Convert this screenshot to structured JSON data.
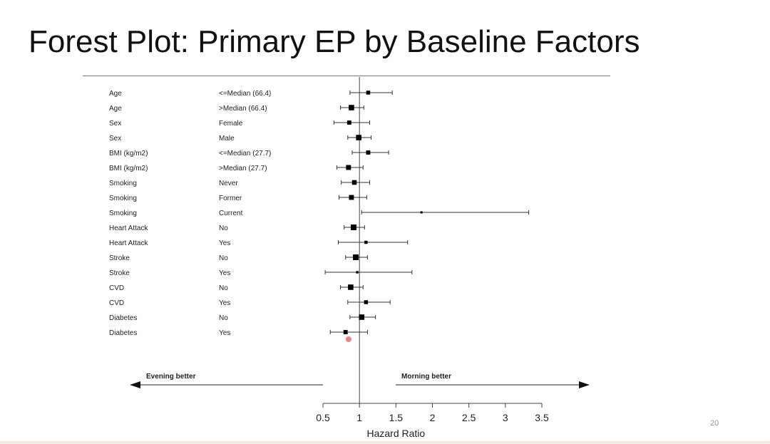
{
  "slide": {
    "title": "Forest Plot: Primary EP by Baseline Factors",
    "page_number": "20"
  },
  "chart_data": {
    "type": "forest",
    "title": "",
    "xlabel": "Hazard Ratio",
    "xlim": [
      0.5,
      3.5
    ],
    "xticks": [
      0.5,
      1,
      1.5,
      2,
      2.5,
      3,
      3.5
    ],
    "xtick_labels": [
      "0.5",
      "1",
      "1.5",
      "2",
      "2.5",
      "3",
      "3.5"
    ],
    "reference_line": 1,
    "rows": [
      {
        "factor": "Age",
        "level": "<=Median (66.4)",
        "hr": 1.12,
        "lo": 0.87,
        "hi": 1.45,
        "weight": 0.5
      },
      {
        "factor": "Age",
        "level": ">Median (66.4)",
        "hr": 0.89,
        "lo": 0.74,
        "hi": 1.06,
        "weight": 0.8
      },
      {
        "factor": "Sex",
        "level": "Female",
        "hr": 0.86,
        "lo": 0.65,
        "hi": 1.14,
        "weight": 0.55
      },
      {
        "factor": "Sex",
        "level": "Male",
        "hr": 0.99,
        "lo": 0.84,
        "hi": 1.16,
        "weight": 0.8
      },
      {
        "factor": "BMI (kg/m2)",
        "level": "<=Median (27.7)",
        "hr": 1.12,
        "lo": 0.9,
        "hi": 1.4,
        "weight": 0.55
      },
      {
        "factor": "BMI (kg/m2)",
        "level": ">Median (27.7)",
        "hr": 0.85,
        "lo": 0.69,
        "hi": 1.05,
        "weight": 0.7
      },
      {
        "factor": "Smoking",
        "level": "Never",
        "hr": 0.93,
        "lo": 0.75,
        "hi": 1.14,
        "weight": 0.65
      },
      {
        "factor": "Smoking",
        "level": "Former",
        "hr": 0.89,
        "lo": 0.72,
        "hi": 1.1,
        "weight": 0.7
      },
      {
        "factor": "Smoking",
        "level": "Current",
        "hr": 1.85,
        "lo": 1.03,
        "hi": 3.32,
        "weight": 0.15
      },
      {
        "factor": "Heart Attack",
        "level": "No",
        "hr": 0.92,
        "lo": 0.79,
        "hi": 1.07,
        "weight": 0.85
      },
      {
        "factor": "Heart Attack",
        "level": "Yes",
        "hr": 1.09,
        "lo": 0.71,
        "hi": 1.66,
        "weight": 0.35
      },
      {
        "factor": "Stroke",
        "level": "No",
        "hr": 0.95,
        "lo": 0.81,
        "hi": 1.11,
        "weight": 0.85
      },
      {
        "factor": "Stroke",
        "level": "Yes",
        "hr": 0.97,
        "lo": 0.53,
        "hi": 1.72,
        "weight": 0.2
      },
      {
        "factor": "CVD",
        "level": "No",
        "hr": 0.88,
        "lo": 0.74,
        "hi": 1.05,
        "weight": 0.8
      },
      {
        "factor": "CVD",
        "level": "Yes",
        "hr": 1.09,
        "lo": 0.84,
        "hi": 1.42,
        "weight": 0.5
      },
      {
        "factor": "Diabetes",
        "level": "No",
        "hr": 1.03,
        "lo": 0.87,
        "hi": 1.22,
        "weight": 0.8
      },
      {
        "factor": "Diabetes",
        "level": "Yes",
        "hr": 0.81,
        "lo": 0.6,
        "hi": 1.11,
        "weight": 0.55
      }
    ],
    "annotations": {
      "left": "Evening better",
      "right": "Morning better"
    },
    "grid": false
  }
}
